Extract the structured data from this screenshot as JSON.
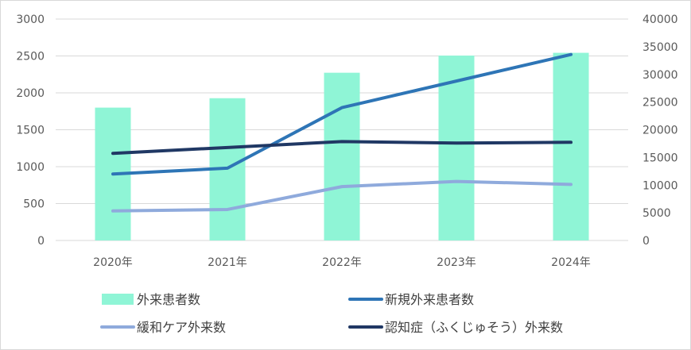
{
  "chart_data": {
    "type": "bar",
    "categories": [
      "2020年",
      "2021年",
      "2022年",
      "2023年",
      "2024年"
    ],
    "y_left": {
      "ticks": [
        "0",
        "500",
        "1000",
        "1500",
        "2000",
        "2500",
        "3000"
      ],
      "ylim": [
        0,
        3000
      ]
    },
    "y_right": {
      "ticks": [
        "0",
        "5000",
        "10000",
        "15000",
        "20000",
        "25000",
        "30000",
        "35000",
        "40000"
      ],
      "ylim": [
        0,
        40000
      ]
    },
    "grid": true,
    "legend_position": "bottom",
    "series": [
      {
        "name": "外来患者数",
        "type": "bar",
        "axis": "right",
        "color": "#8ff5d6",
        "values": [
          24000,
          25700,
          30300,
          33400,
          33900
        ]
      },
      {
        "name": "新規外来患者数",
        "type": "line",
        "axis": "left",
        "color": "#2e75b6",
        "values": [
          900,
          980,
          1800,
          2160,
          2520
        ]
      },
      {
        "name": "緩和ケア外来数",
        "type": "line",
        "axis": "left",
        "color": "#8faadc",
        "values": [
          400,
          420,
          730,
          800,
          760
        ]
      },
      {
        "name": "認知症（ふくじゅそう）外来数",
        "type": "line",
        "axis": "left",
        "color": "#203864",
        "values": [
          1180,
          1260,
          1340,
          1320,
          1330
        ]
      }
    ]
  }
}
